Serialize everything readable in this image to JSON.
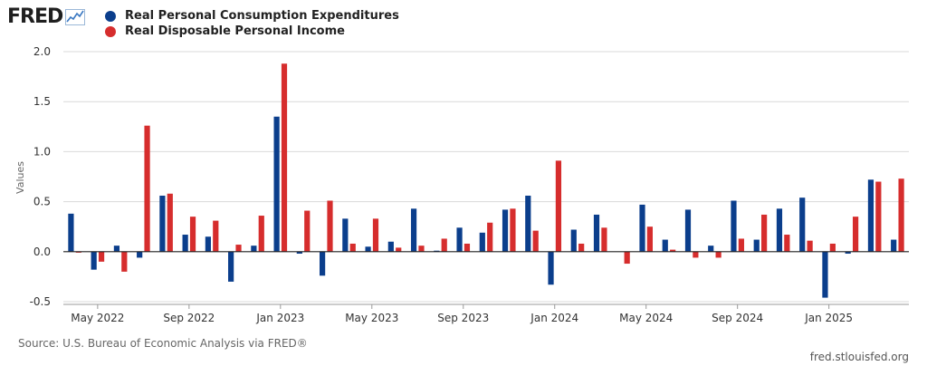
{
  "logo": {
    "text": "FRED"
  },
  "colors": {
    "pce": "#0b3e8c",
    "income": "#d62d2d",
    "grid": "#d9d9d9",
    "axis": "#333333"
  },
  "source_text": "Source: U.S. Bureau of Economic Analysis via FRED®",
  "site_url": "fred.stlouisfed.org",
  "chart_data": {
    "type": "bar",
    "ylabel": "Values",
    "ylim": [
      -0.5,
      2.0
    ],
    "yticks": [
      "2.0",
      "1.5",
      "1.0",
      "0.5",
      "0.0",
      "-0.5"
    ],
    "ytick_values": [
      2.0,
      1.5,
      1.0,
      0.5,
      0.0,
      -0.5
    ],
    "grid": true,
    "legend_position": "top-left",
    "categories": [
      "2022-04",
      "2022-05",
      "2022-06",
      "2022-07",
      "2022-08",
      "2022-09",
      "2022-10",
      "2022-11",
      "2022-12",
      "2023-01",
      "2023-02",
      "2023-03",
      "2023-04",
      "2023-05",
      "2023-06",
      "2023-07",
      "2023-08",
      "2023-09",
      "2023-10",
      "2023-11",
      "2023-12",
      "2024-01",
      "2024-02",
      "2024-03",
      "2024-04",
      "2024-05",
      "2024-06",
      "2024-07",
      "2024-08",
      "2024-09",
      "2024-10",
      "2024-11",
      "2024-12",
      "2025-01",
      "2025-02",
      "2025-03",
      "2025-04"
    ],
    "x_tick_labels": [
      {
        "index": 1,
        "label": "May 2022"
      },
      {
        "index": 5,
        "label": "Sep 2022"
      },
      {
        "index": 9,
        "label": "Jan 2023"
      },
      {
        "index": 13,
        "label": "May 2023"
      },
      {
        "index": 17,
        "label": "Sep 2023"
      },
      {
        "index": 21,
        "label": "Jan 2024"
      },
      {
        "index": 25,
        "label": "May 2024"
      },
      {
        "index": 29,
        "label": "Sep 2024"
      },
      {
        "index": 33,
        "label": "Jan 2025"
      }
    ],
    "series": [
      {
        "name": "Real Personal Consumption Expenditures",
        "color": "#0b3e8c",
        "values": [
          0.38,
          -0.18,
          0.06,
          -0.06,
          0.56,
          0.17,
          0.15,
          -0.3,
          0.06,
          1.35,
          -0.02,
          -0.24,
          0.33,
          0.05,
          0.1,
          0.43,
          0.01,
          0.24,
          0.19,
          0.42,
          0.56,
          -0.33,
          0.22,
          0.37,
          0.0,
          0.47,
          0.12,
          0.42,
          0.06,
          0.51,
          0.12,
          0.43,
          0.54,
          -0.46,
          -0.02,
          0.72,
          0.12
        ]
      },
      {
        "name": "Real Disposable Personal Income",
        "color": "#d62d2d",
        "values": [
          -0.01,
          -0.1,
          -0.2,
          1.26,
          0.58,
          0.35,
          0.31,
          0.07,
          0.36,
          1.88,
          0.41,
          0.51,
          0.08,
          0.33,
          0.04,
          0.06,
          0.13,
          0.08,
          0.29,
          0.43,
          0.21,
          0.91,
          0.08,
          0.24,
          -0.12,
          0.25,
          0.02,
          -0.06,
          -0.06,
          0.13,
          0.37,
          0.17,
          0.11,
          0.08,
          0.35,
          0.7,
          0.73
        ]
      }
    ]
  }
}
